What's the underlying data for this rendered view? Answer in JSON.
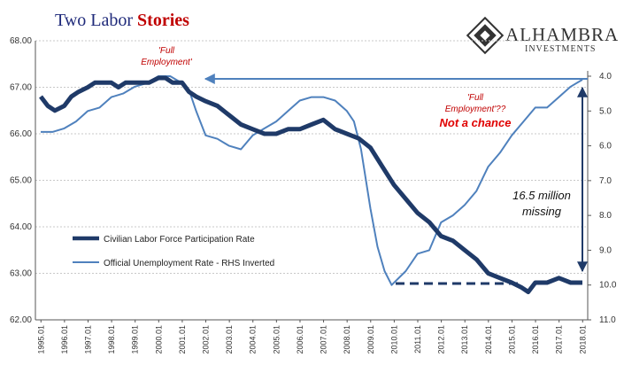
{
  "title": {
    "main": "Two Labor ",
    "accent": "Stories"
  },
  "logo": {
    "name": "ALHAMBRA",
    "sub": "INVESTMENTS"
  },
  "annotations": {
    "full_employment_left_1": "'Full",
    "full_employment_left_2": "Employment'",
    "full_employment_right_1": "'Full",
    "full_employment_right_2": "Employment'??",
    "not_a_chance": "Not a chance",
    "missing_1": "16.5 million",
    "missing_2": "missing"
  },
  "colors": {
    "lfpr": "#1f3a68",
    "unemployment": "#4f81bd",
    "arrow": "#4f81bd",
    "accent_red": "#c00000",
    "grid": "#c8c8c8"
  },
  "chart_data": {
    "type": "line",
    "x_ticks": [
      "1995.01",
      "1996.01",
      "1997.01",
      "1998.01",
      "1999.01",
      "2000.01",
      "2001.01",
      "2002.01",
      "2003.01",
      "2004.01",
      "2005.01",
      "2006.01",
      "2007.01",
      "2008.01",
      "2009.01",
      "2010.01",
      "2011.01",
      "2012.01",
      "2013.01",
      "2014.01",
      "2015.01",
      "2016.01",
      "2017.01",
      "2018.01"
    ],
    "y_left": {
      "min": 62.0,
      "max": 68.0,
      "ticks": [
        "62.00",
        "63.00",
        "64.00",
        "65.00",
        "66.00",
        "67.00",
        "68.00"
      ]
    },
    "y_right": {
      "min": 4.0,
      "max": 11.0,
      "inverted": true,
      "ticks": [
        "4.0",
        "5.0",
        "6.0",
        "7.0",
        "8.0",
        "9.0",
        "10.0",
        "11.0"
      ]
    },
    "grid": true,
    "legend_position": "lower-left",
    "series": [
      {
        "name": "Civilian Labor Force Participation Rate",
        "axis": "left",
        "x": [
          1995.0,
          1995.3,
          1995.6,
          1996.0,
          1996.3,
          1996.6,
          1997.0,
          1997.3,
          1997.6,
          1998.0,
          1998.3,
          1998.6,
          1999.0,
          1999.3,
          1999.6,
          2000.0,
          2000.3,
          2000.6,
          2001.0,
          2001.3,
          2001.6,
          2002.0,
          2002.5,
          2003.0,
          2003.5,
          2004.0,
          2004.5,
          2005.0,
          2005.5,
          2006.0,
          2006.5,
          2007.0,
          2007.5,
          2008.0,
          2008.5,
          2009.0,
          2009.5,
          2010.0,
          2010.5,
          2011.0,
          2011.5,
          2012.0,
          2012.5,
          2013.0,
          2013.5,
          2014.0,
          2014.5,
          2015.0,
          2015.4,
          2015.7,
          2016.0,
          2016.5,
          2017.0,
          2017.5,
          2018.0
        ],
        "y": [
          66.8,
          66.6,
          66.5,
          66.6,
          66.8,
          66.9,
          67.0,
          67.1,
          67.1,
          67.1,
          67.0,
          67.1,
          67.1,
          67.1,
          67.1,
          67.2,
          67.2,
          67.1,
          67.1,
          66.9,
          66.8,
          66.7,
          66.6,
          66.4,
          66.2,
          66.1,
          66.0,
          66.0,
          66.1,
          66.1,
          66.2,
          66.3,
          66.1,
          66.0,
          65.9,
          65.7,
          65.3,
          64.9,
          64.6,
          64.3,
          64.1,
          63.8,
          63.7,
          63.5,
          63.3,
          63.0,
          62.9,
          62.8,
          62.7,
          62.6,
          62.8,
          62.8,
          62.9,
          62.8,
          62.8
        ]
      },
      {
        "name": "Official Unemployment Rate - RHS Inverted",
        "axis": "right",
        "x": [
          1995.0,
          1995.5,
          1996.0,
          1996.5,
          1997.0,
          1997.5,
          1998.0,
          1998.5,
          1999.0,
          1999.5,
          2000.0,
          2000.5,
          2001.0,
          2001.3,
          2001.6,
          2002.0,
          2002.5,
          2003.0,
          2003.5,
          2004.0,
          2004.5,
          2005.0,
          2005.5,
          2006.0,
          2006.5,
          2007.0,
          2007.5,
          2008.0,
          2008.3,
          2008.6,
          2009.0,
          2009.3,
          2009.6,
          2009.9,
          2010.5,
          2011.0,
          2011.5,
          2012.0,
          2012.5,
          2013.0,
          2013.5,
          2014.0,
          2014.5,
          2015.0,
          2015.5,
          2016.0,
          2016.5,
          2017.0,
          2017.5,
          2018.0
        ],
        "y": [
          5.6,
          5.6,
          5.5,
          5.3,
          5.0,
          4.9,
          4.6,
          4.5,
          4.3,
          4.2,
          4.0,
          4.0,
          4.2,
          4.4,
          5.0,
          5.7,
          5.8,
          6.0,
          6.1,
          5.7,
          5.5,
          5.3,
          5.0,
          4.7,
          4.6,
          4.6,
          4.7,
          5.0,
          5.3,
          6.1,
          7.8,
          8.9,
          9.6,
          10.0,
          9.6,
          9.1,
          9.0,
          8.2,
          8.0,
          7.7,
          7.3,
          6.6,
          6.2,
          5.7,
          5.3,
          4.9,
          4.9,
          4.6,
          4.3,
          4.1
        ]
      }
    ]
  }
}
